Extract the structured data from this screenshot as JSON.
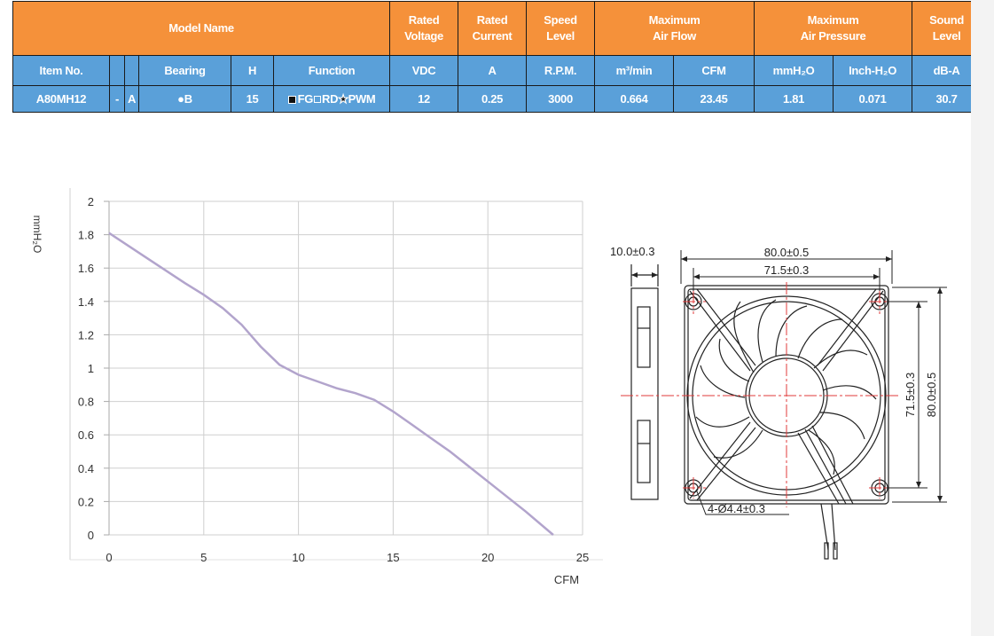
{
  "table": {
    "header": {
      "model_name": "Model Name",
      "rated_voltage": [
        "Rated",
        "Voltage"
      ],
      "rated_current": [
        "Rated",
        "Current"
      ],
      "speed_level": [
        "Speed",
        "Level"
      ],
      "max_air_flow": [
        "Maximum",
        "Air Flow"
      ],
      "max_air_pressure": [
        "Maximum",
        "Air Pressure"
      ],
      "sound_level": [
        "Sound",
        "Level"
      ]
    },
    "units": {
      "item_no": "Item No.",
      "bearing": "Bearing",
      "h": "H",
      "function": "Function",
      "vdc": "VDC",
      "a": "A",
      "rpm": "R.P.M.",
      "m3min": "m³/min",
      "cfm": "CFM",
      "mmh2o": "mmH₂O",
      "inch_h2o": "Inch-H₂O",
      "dba": "dB-A"
    },
    "row": {
      "item_no": "A80MH12",
      "dash": "-",
      "suffix": "A",
      "bearing": "●B",
      "h": "15",
      "function_fg": "FG",
      "function_rd": "RD",
      "function_pwm": "PWM",
      "vdc": "12",
      "a": "0.25",
      "rpm": "3000",
      "m3min": "0.664",
      "cfm": "23.45",
      "mmh2o": "1.81",
      "inch_h2o": "0.071",
      "dba": "30.7"
    }
  },
  "chart_data": {
    "type": "line",
    "xlabel": "CFM",
    "ylabel": "mmH₂O",
    "xlim": [
      0,
      25
    ],
    "ylim": [
      0,
      2
    ],
    "x_ticks": [
      "0",
      "5",
      "10",
      "15",
      "20",
      "25"
    ],
    "y_ticks": [
      "0",
      "0.2",
      "0.4",
      "0.6",
      "0.8",
      "1",
      "1.2",
      "1.4",
      "1.6",
      "1.8",
      "2"
    ],
    "grid": true,
    "series": [
      {
        "x": [
          0,
          2,
          4,
          5,
          6,
          7,
          8,
          9,
          10,
          11,
          12,
          13,
          14,
          15,
          16,
          17,
          18,
          19,
          20,
          21,
          22,
          23.45
        ],
        "values": [
          1.81,
          1.66,
          1.51,
          1.44,
          1.36,
          1.26,
          1.13,
          1.02,
          0.96,
          0.92,
          0.88,
          0.85,
          0.81,
          0.74,
          0.66,
          0.58,
          0.5,
          0.41,
          0.32,
          0.23,
          0.14,
          0
        ]
      }
    ]
  },
  "drawing": {
    "thickness": "10.0±0.3",
    "outer_width": "80.0±0.5",
    "hole_spacing_h": "71.5±0.3",
    "hole_spacing_v": "71.5±0.3",
    "outer_height": "80.0±0.5",
    "holes": "4-Ø4.4±0.3"
  }
}
